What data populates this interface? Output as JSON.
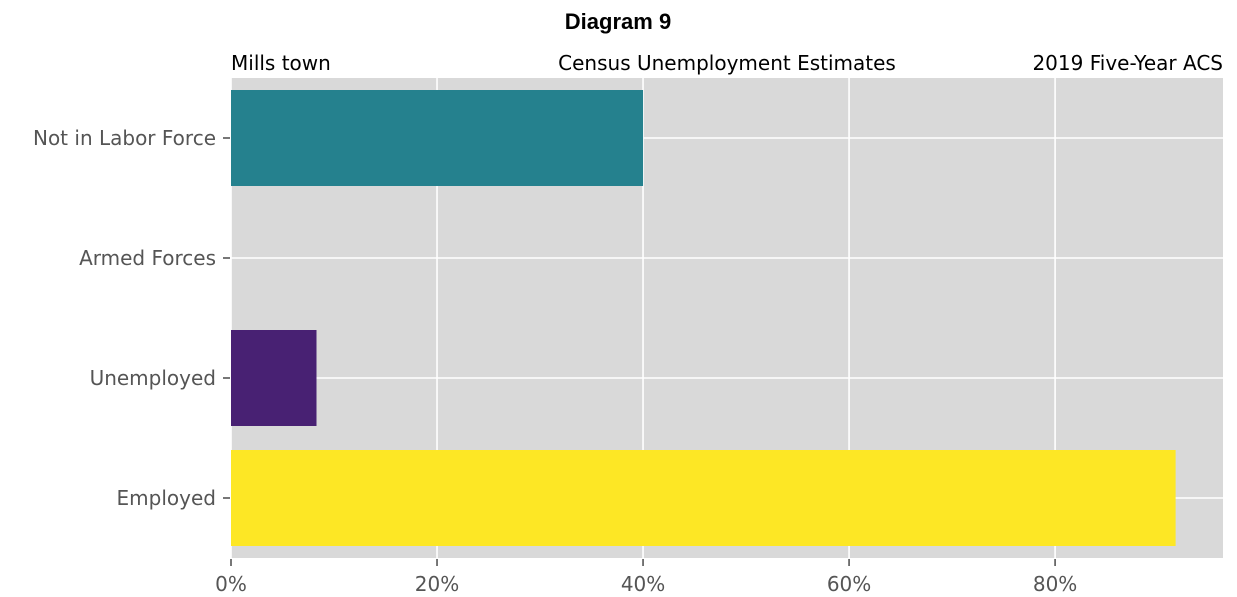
{
  "chart_data": {
    "type": "bar",
    "orientation": "horizontal",
    "title": "Diagram 9",
    "subtitle_left": "Mills town",
    "subtitle_center": "Census Unemployment Estimates",
    "subtitle_right": "2019 Five-Year ACS",
    "categories": [
      "Employed",
      "Unemployed",
      "Armed Forces",
      "Not in Labor Force"
    ],
    "values": [
      91.7,
      8.3,
      0,
      40
    ],
    "bar_colors": [
      "#fde725",
      "#482173",
      "#2a788e",
      "#25818e"
    ],
    "xlim": [
      0,
      96.3
    ],
    "xticks": [
      0,
      20,
      40,
      60,
      80
    ],
    "xtick_labels": [
      "0%",
      "20%",
      "40%",
      "60%",
      "80%"
    ],
    "xlabel": "",
    "ylabel": "",
    "grid": true,
    "legend": "none",
    "colors": {
      "plot_background": "#d9d9d9",
      "grid": "#ffffff",
      "tick_text": "#555555"
    }
  }
}
